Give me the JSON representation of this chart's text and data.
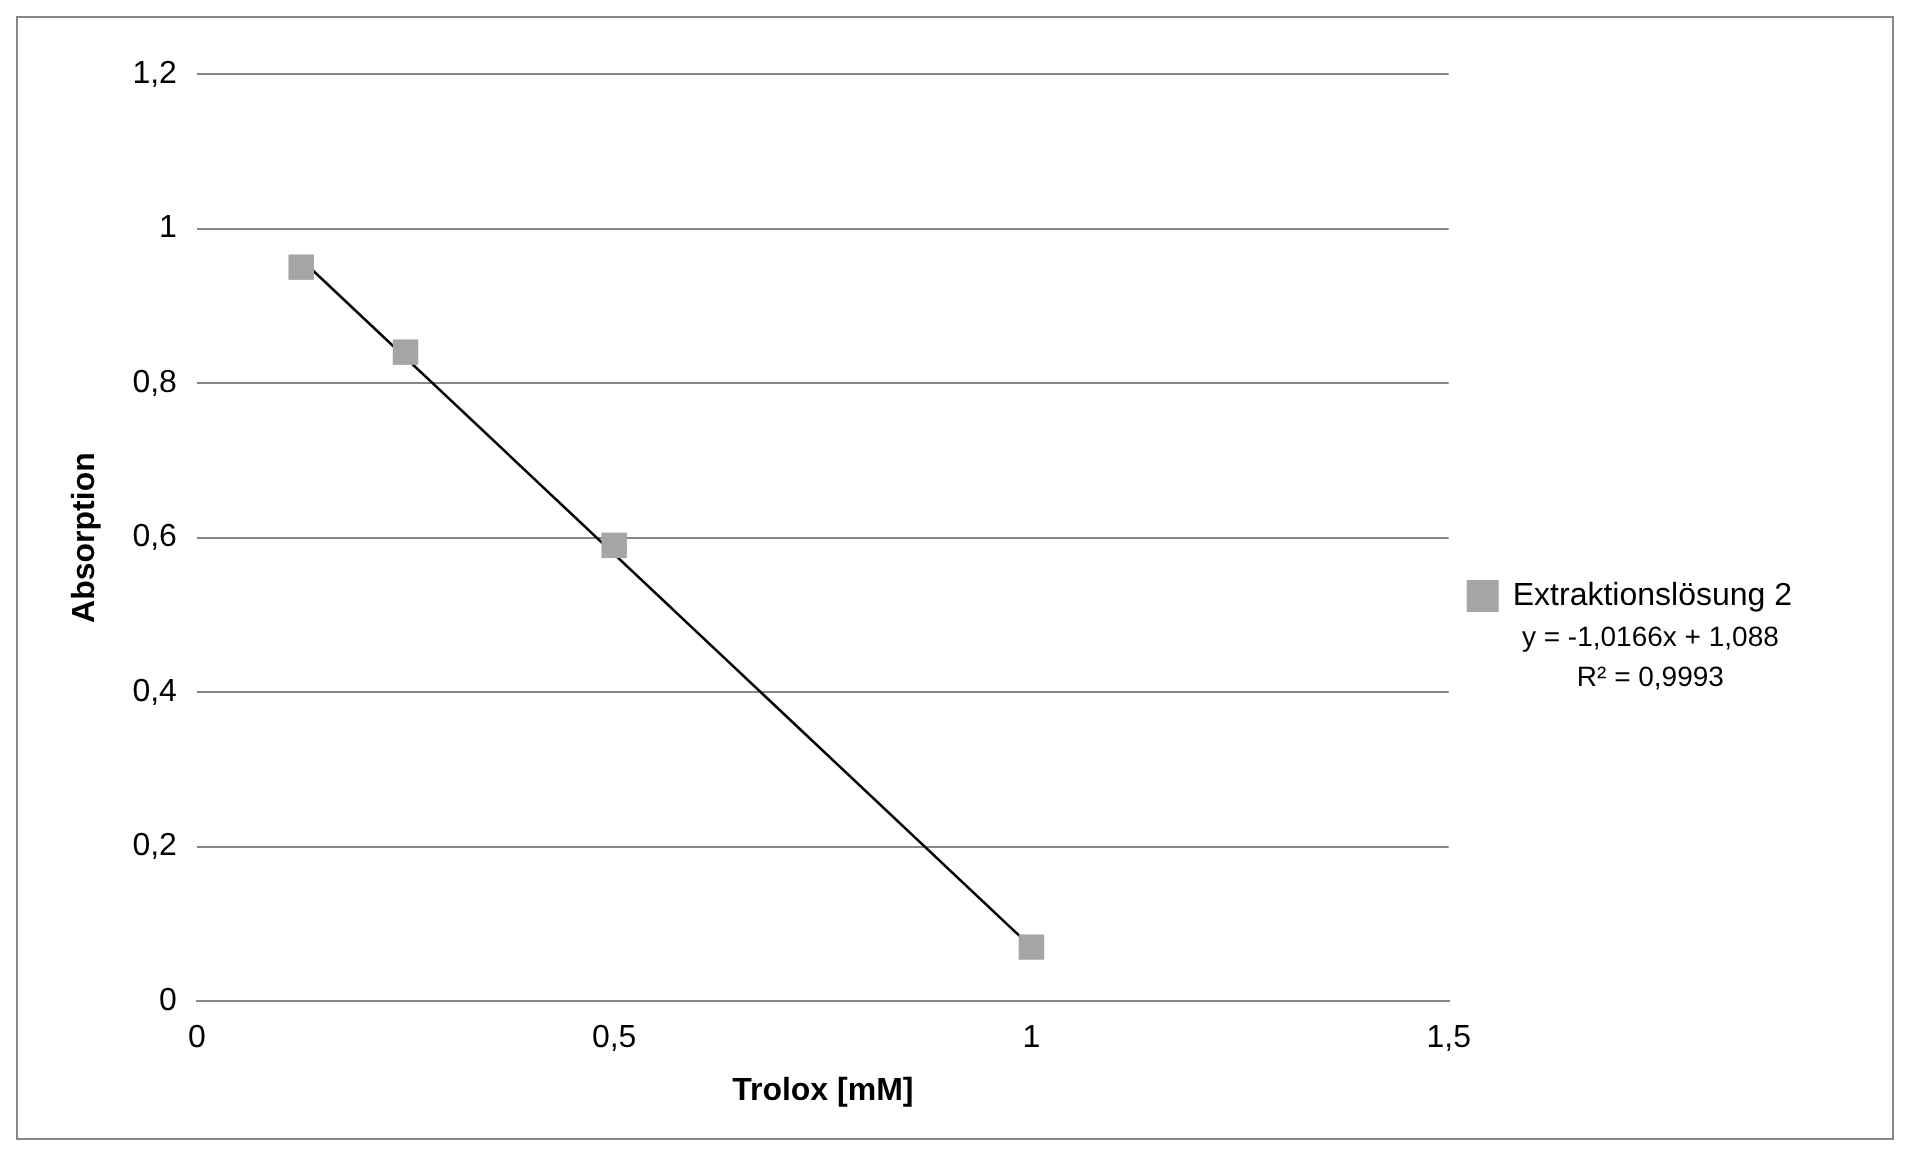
{
  "chart_data": {
    "type": "scatter",
    "xlabel": "Trolox [mM]",
    "ylabel": "Absorption",
    "x": [
      0.125,
      0.25,
      0.5,
      1
    ],
    "series": [
      {
        "name": "Extraktionslösung 2",
        "color": "#a5a5a5",
        "values": [
          0.95,
          0.84,
          0.59,
          0.07
        ]
      },
      {
        "type": "line",
        "x": [
          0.125,
          1
        ],
        "values": [
          0.96,
          0.07
        ],
        "color": "#000000",
        "marker": "none"
      }
    ],
    "xlim": [
      0,
      1.5
    ],
    "xticks": [
      0,
      {
        "value": 0.5,
        "label": "0,5"
      },
      1,
      {
        "value": 1.5,
        "label": "1,5"
      }
    ],
    "ylim": [
      0,
      1.2
    ],
    "yticks": [
      0,
      {
        "value": 0.2,
        "label": "0,2"
      },
      {
        "value": 0.4,
        "label": "0,4"
      },
      {
        "value": 0.6,
        "label": "0,6"
      },
      {
        "value": 0.8,
        "label": "0,8"
      },
      1,
      {
        "value": 1.2,
        "label": "1,2"
      }
    ],
    "grid": "y",
    "legend": "right",
    "marker": "square",
    "annotations": [
      "y = -1,0166x + 1,088",
      "R² = 0,9993"
    ]
  }
}
